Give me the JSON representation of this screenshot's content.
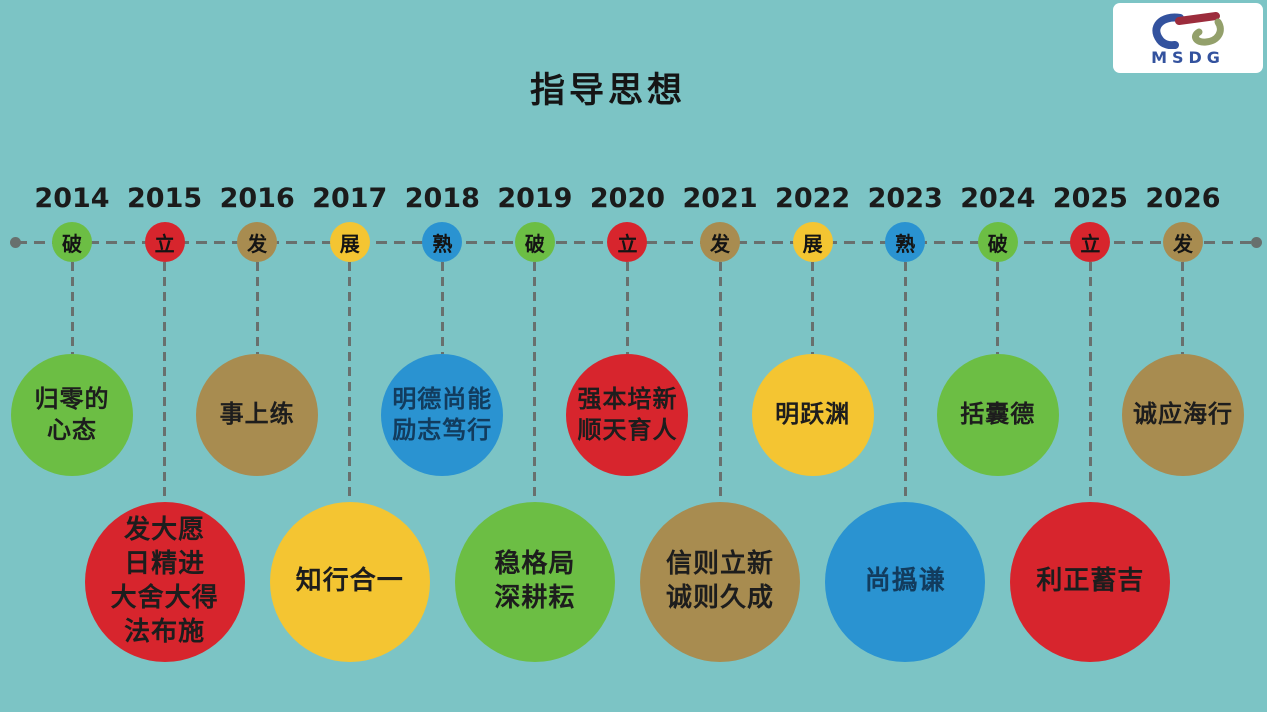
{
  "title": "指导思想",
  "logo": {
    "text": "MSDG"
  },
  "colors": {
    "background": "#7cc4c5",
    "line": "#68706e",
    "green": "#6cbe44",
    "red": "#d7252d",
    "tan": "#a88c50",
    "yellow": "#f4c532",
    "blue": "#2a93d1",
    "circle_text": "#1d1d1d",
    "circle_text_navy": "#123c5e",
    "logo_blue": "#33529e",
    "logo_red": "#9c2c3c",
    "logo_olive": "#93a06b",
    "logo_bg": "#ffffff"
  },
  "timeline": {
    "items": [
      {
        "year": "2014",
        "stage": "破",
        "color": "green",
        "row": "upper",
        "phrase_lines": [
          "归零的",
          "心态"
        ]
      },
      {
        "year": "2015",
        "stage": "立",
        "color": "red",
        "row": "lower",
        "phrase_lines": [
          "发大愿",
          "日精进",
          "大舍大得",
          "法布施"
        ]
      },
      {
        "year": "2016",
        "stage": "发",
        "color": "tan",
        "row": "upper",
        "phrase_lines": [
          "事上练"
        ]
      },
      {
        "year": "2017",
        "stage": "展",
        "color": "yellow",
        "row": "lower",
        "phrase_lines": [
          "知行合一"
        ]
      },
      {
        "year": "2018",
        "stage": "熟",
        "color": "blue",
        "row": "upper",
        "phrase_lines": [
          "明德尚能",
          "励志笃行"
        ],
        "text_color": "circle_text_navy"
      },
      {
        "year": "2019",
        "stage": "破",
        "color": "green",
        "row": "lower",
        "phrase_lines": [
          "稳格局",
          "深耕耘"
        ]
      },
      {
        "year": "2020",
        "stage": "立",
        "color": "red",
        "row": "upper",
        "phrase_lines": [
          "强本培新",
          "顺天育人"
        ]
      },
      {
        "year": "2021",
        "stage": "发",
        "color": "tan",
        "row": "lower",
        "phrase_lines": [
          "信则立新",
          "诚则久成"
        ]
      },
      {
        "year": "2022",
        "stage": "展",
        "color": "yellow",
        "row": "upper",
        "phrase_lines": [
          "明跃渊"
        ]
      },
      {
        "year": "2023",
        "stage": "熟",
        "color": "blue",
        "row": "lower",
        "phrase_lines": [
          "尚撝谦"
        ],
        "text_color": "circle_text_navy"
      },
      {
        "year": "2024",
        "stage": "破",
        "color": "green",
        "row": "upper",
        "phrase_lines": [
          "括囊德"
        ]
      },
      {
        "year": "2025",
        "stage": "立",
        "color": "red",
        "row": "lower",
        "phrase_lines": [
          "利正蓄吉"
        ]
      },
      {
        "year": "2026",
        "stage": "发",
        "color": "tan",
        "row": "upper",
        "phrase_lines": [
          "诚应海行"
        ]
      }
    ]
  }
}
